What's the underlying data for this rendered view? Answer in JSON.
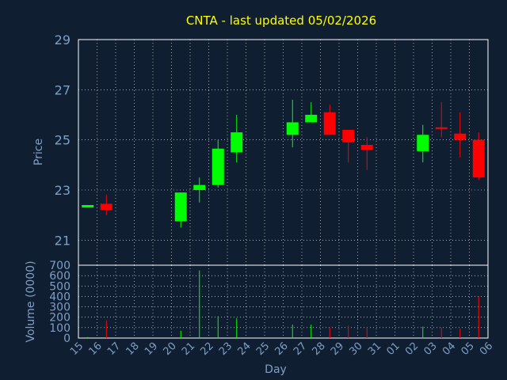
{
  "colors": {
    "background": "#0f1e30",
    "text": "#7f9fc7",
    "title": "#ffff00",
    "grid": "#ffffff",
    "up": "#00ff00",
    "down": "#ff0000",
    "axis_label": "#7f9fc7"
  },
  "chart_data": {
    "type": "candlestick",
    "title": "CNTA - last updated 05/02/2026",
    "xlabel": "Day",
    "price_panel": {
      "ylabel": "Price",
      "ylim": [
        20,
        29
      ],
      "yticks": [
        21,
        23,
        25,
        27,
        29
      ],
      "grid": true
    },
    "volume_panel": {
      "ylabel": "Volume (0000)",
      "ylim": [
        0,
        700
      ],
      "yticks": [
        0,
        100,
        200,
        300,
        400,
        500,
        600,
        700
      ],
      "grid": true
    },
    "x_ticks": [
      "15",
      "16",
      "17",
      "18",
      "19",
      "20",
      "21",
      "22",
      "23",
      "24",
      "25",
      "26",
      "27",
      "28",
      "29",
      "30",
      "31",
      "01",
      "02",
      "03",
      "04",
      "05",
      "06"
    ],
    "candles": [
      {
        "day": "15",
        "open": 22.3,
        "close": 22.4,
        "high": 22.4,
        "low": 22.3,
        "volume": 10
      },
      {
        "day": "16",
        "open": 22.45,
        "close": 22.2,
        "high": 22.8,
        "low": 22.0,
        "volume": 170
      },
      {
        "day": "20",
        "open": 21.75,
        "close": 22.9,
        "high": 22.9,
        "low": 21.5,
        "volume": 70
      },
      {
        "day": "21",
        "open": 23.0,
        "close": 23.2,
        "high": 23.5,
        "low": 22.5,
        "volume": 650
      },
      {
        "day": "22",
        "open": 23.2,
        "close": 24.65,
        "high": 25.0,
        "low": 23.1,
        "volume": 210
      },
      {
        "day": "23",
        "open": 24.5,
        "close": 25.3,
        "high": 26.0,
        "low": 24.1,
        "volume": 190
      },
      {
        "day": "26",
        "open": 25.2,
        "close": 25.7,
        "high": 26.6,
        "low": 24.7,
        "volume": 130
      },
      {
        "day": "27",
        "open": 25.7,
        "close": 26.0,
        "high": 26.5,
        "low": 25.7,
        "volume": 130
      },
      {
        "day": "28",
        "open": 26.1,
        "close": 25.2,
        "high": 26.4,
        "low": 25.2,
        "volume": 100
      },
      {
        "day": "29",
        "open": 25.4,
        "close": 24.9,
        "high": 25.4,
        "low": 24.1,
        "volume": 120
      },
      {
        "day": "30",
        "open": 24.8,
        "close": 24.6,
        "high": 25.1,
        "low": 23.8,
        "volume": 100
      },
      {
        "day": "02",
        "open": 24.55,
        "close": 25.2,
        "high": 25.6,
        "low": 24.1,
        "volume": 110
      },
      {
        "day": "03",
        "open": 25.5,
        "close": 25.45,
        "high": 26.5,
        "low": 25.1,
        "volume": 100
      },
      {
        "day": "04",
        "open": 25.25,
        "close": 25.0,
        "high": 26.1,
        "low": 24.3,
        "volume": 90
      },
      {
        "day": "05",
        "open": 25.0,
        "close": 23.5,
        "high": 25.3,
        "low": 23.4,
        "volume": 400
      }
    ]
  }
}
